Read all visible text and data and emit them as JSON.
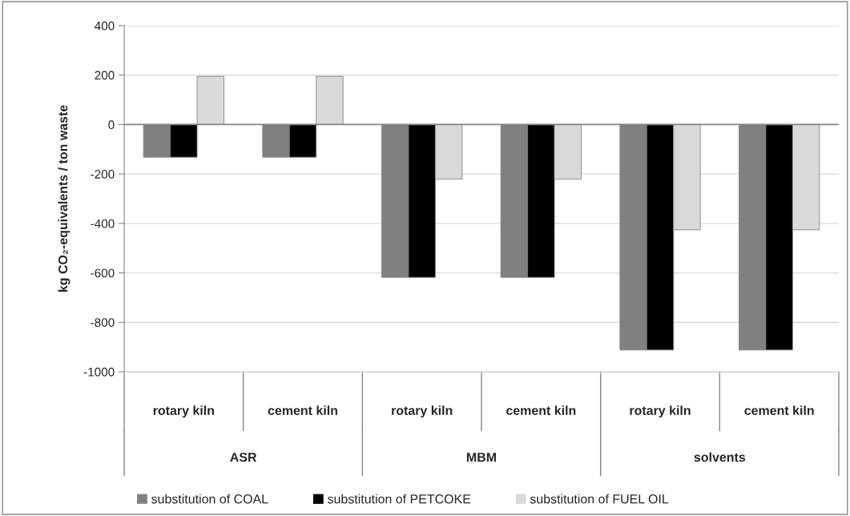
{
  "chart_data": {
    "type": "bar",
    "ylabel": "kg CO₂-equivalents / ton waste",
    "categories": [
      "rotary kiln",
      "cement kiln",
      "rotary kiln",
      "cement kiln",
      "rotary kiln",
      "cement kiln"
    ],
    "annotations": [
      "ASR",
      "MBM",
      "solvents"
    ],
    "series": [
      {
        "name": "substitution of COAL",
        "color": "#808080",
        "values": [
          -132,
          -132,
          -618,
          -618,
          -912,
          -912
        ]
      },
      {
        "name": "substitution of PETCOKE",
        "color": "#000000",
        "values": [
          -132,
          -132,
          -618,
          -618,
          -912,
          -912
        ]
      },
      {
        "name": "substitution of FUEL OIL",
        "color": "#d9d9d9",
        "values": [
          195,
          195,
          -221,
          -221,
          -426,
          -426
        ]
      }
    ],
    "ylim": [
      -1000,
      400
    ],
    "yticks": [
      -1000,
      -800,
      -600,
      -400,
      -200,
      0,
      200,
      400
    ],
    "grid": "y",
    "legend": "bottom"
  }
}
